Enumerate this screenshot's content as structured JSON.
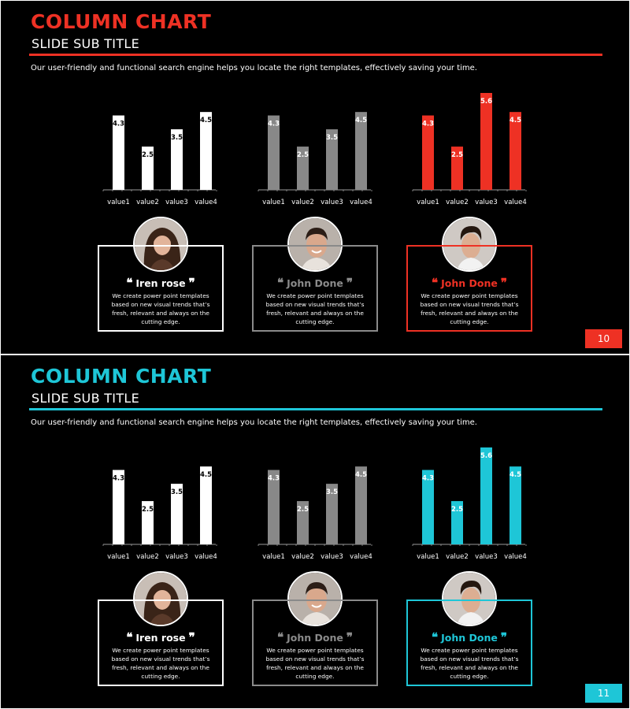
{
  "slides": [
    {
      "title": "COLUMN CHART",
      "subtitle": "SLIDE SUB TITLE",
      "description": "Our user-friendly and functional search engine helps you locate the right templates, effectively saving your time.",
      "accent_color": "#ee3124",
      "page_number": "10",
      "charts": [
        {
          "color": "#ffffff",
          "label_color": "#000000"
        },
        {
          "color": "#888888",
          "label_color": "#ffffff"
        },
        {
          "color": "#ee3124",
          "label_color": "#ffffff"
        }
      ],
      "cards": [
        {
          "name": "Iren rose",
          "text": "We create power point templates based on new visual trends that’s fresh, relevant and always on the cutting edge.",
          "border_color": "#ffffff",
          "name_color": "#ffffff",
          "avatar": "woman-portrait-icon"
        },
        {
          "name": "John Done",
          "text": "We create power point templates based on new visual trends that’s fresh, relevant and always on the cutting edge.",
          "border_color": "#8a8a8a",
          "name_color": "#8a8a8a",
          "avatar": "man-portrait-icon"
        },
        {
          "name": "John Done",
          "text": "We create power point templates based on new visual trends that’s fresh, relevant and always on the cutting edge.",
          "border_color": "#ee3124",
          "name_color": "#ee3124",
          "avatar": "young-man-portrait-icon"
        }
      ]
    },
    {
      "title": "COLUMN CHART",
      "subtitle": "SLIDE SUB TITLE",
      "description": "Our user-friendly and functional search engine helps you locate the right templates, effectively saving your time.",
      "accent_color": "#1ec6d7",
      "page_number": "11",
      "charts": [
        {
          "color": "#ffffff",
          "label_color": "#000000"
        },
        {
          "color": "#888888",
          "label_color": "#ffffff"
        },
        {
          "color": "#1ec6d7",
          "label_color": "#ffffff"
        }
      ],
      "cards": [
        {
          "name": "Iren rose",
          "text": "We create power point templates based on new visual trends that’s fresh, relevant and always on the cutting edge.",
          "border_color": "#ffffff",
          "name_color": "#ffffff",
          "avatar": "woman-portrait-icon"
        },
        {
          "name": "John Done",
          "text": "We create power point templates based on new visual trends that’s fresh, relevant and always on the cutting edge.",
          "border_color": "#8a8a8a",
          "name_color": "#8a8a8a",
          "avatar": "man-portrait-icon"
        },
        {
          "name": "John Done",
          "text": "We create power point templates based on new visual trends that’s fresh, relevant and always on the cutting edge.",
          "border_color": "#1ec6d7",
          "name_color": "#1ec6d7",
          "avatar": "young-man-portrait-icon"
        }
      ]
    }
  ],
  "chart_data": [
    {
      "type": "bar",
      "categories": [
        "value1",
        "value2",
        "value3",
        "value4"
      ],
      "values": [
        4.3,
        2.5,
        3.5,
        4.5
      ],
      "ylim": [
        0,
        5.6
      ],
      "grid": false
    },
    {
      "type": "bar",
      "categories": [
        "value1",
        "value2",
        "value3",
        "value4"
      ],
      "values": [
        4.3,
        2.5,
        3.5,
        4.5
      ],
      "ylim": [
        0,
        5.6
      ],
      "grid": false
    },
    {
      "type": "bar",
      "categories": [
        "value1",
        "value2",
        "value3",
        "value4"
      ],
      "values": [
        4.3,
        2.5,
        5.6,
        4.5
      ],
      "ylim": [
        0,
        5.6
      ],
      "grid": false
    },
    {
      "type": "bar",
      "categories": [
        "value1",
        "value2",
        "value3",
        "value4"
      ],
      "values": [
        4.3,
        2.5,
        3.5,
        4.5
      ],
      "ylim": [
        0,
        5.6
      ],
      "grid": false
    },
    {
      "type": "bar",
      "categories": [
        "value1",
        "value2",
        "value3",
        "value4"
      ],
      "values": [
        4.3,
        2.5,
        3.5,
        4.5
      ],
      "ylim": [
        0,
        5.6
      ],
      "grid": false
    },
    {
      "type": "bar",
      "categories": [
        "value1",
        "value2",
        "value3",
        "value4"
      ],
      "values": [
        4.3,
        2.5,
        5.6,
        4.5
      ],
      "ylim": [
        0,
        5.6
      ],
      "grid": false
    }
  ]
}
